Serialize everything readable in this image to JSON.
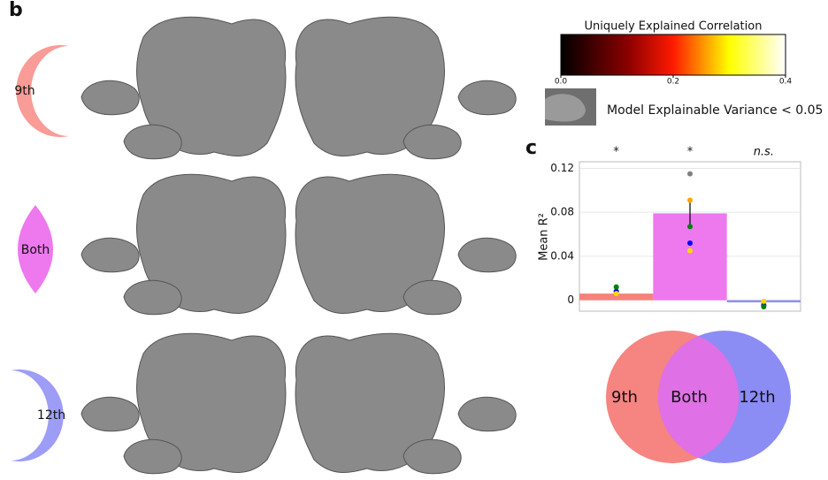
{
  "panel_b": "b",
  "panel_c": "c",
  "row_labels": [
    "9th",
    "Both",
    "12th"
  ],
  "colorbar": {
    "title": "Uniquely Explained Correlation",
    "lim": [
      0,
      0.4
    ],
    "ticks": [
      {
        "value": 0,
        "label": "0.0"
      },
      0.2,
      0.4
    ]
  },
  "mask_legend": "Model Explainable Variance < 0.05",
  "venn": [
    "9th",
    "Both",
    "12th"
  ],
  "chart_data": {
    "type": "bar",
    "ylabel": "Mean R²",
    "categories": [
      null,
      null,
      null
    ],
    "values": [
      0.006,
      0.079,
      -0.002
    ],
    "errors": [
      0.002,
      0.011,
      0.002
    ],
    "colors": [
      "#f4837d",
      "#ee78ee",
      "#8f8ff5"
    ],
    "annotations": [
      "*",
      "*",
      "n.s."
    ],
    "points": [
      {
        "color": "#808080",
        "values": [
          0.008,
          0.115,
          -0.004
        ]
      },
      {
        "color": "#ffa500",
        "values": [
          0.007,
          0.091,
          -0.003
        ]
      },
      {
        "color": "#0000ff",
        "values": [
          0.008,
          0.052,
          -0.005
        ]
      },
      {
        "color": "#ffd700",
        "values": [
          0.006,
          0.045,
          -0.001
        ]
      },
      {
        "color": "#008000",
        "values": [
          0.012,
          0.067,
          -0.006
        ]
      }
    ],
    "ylim": [
      -0.01,
      0.126
    ],
    "yticks": [
      0,
      0.04,
      0.08,
      0.12
    ],
    "grid": true
  }
}
